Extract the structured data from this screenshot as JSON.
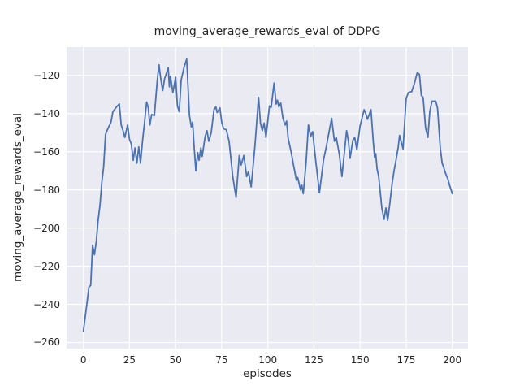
{
  "chart_data": {
    "type": "line",
    "title": "moving_average_rewards_eval of DDPG",
    "xlabel": "episodes",
    "ylabel": "moving_average_rewards_eval",
    "grid": true,
    "legend": false,
    "xlim": [
      -9.1,
      208.5
    ],
    "ylim": [
      -263.2,
      -105.2
    ],
    "xticks": [
      0,
      25,
      50,
      75,
      100,
      125,
      150,
      175,
      200
    ],
    "yticks": [
      -120,
      -140,
      -160,
      -180,
      -200,
      -220,
      -240,
      -260
    ],
    "line_color": "#4c72b0",
    "axes_bg_color": "#eaeaf2",
    "grid_color": "#ffffff",
    "text_color": "#262626",
    "figure_bg_color": "#ffffff",
    "x": [
      0,
      2,
      3,
      4,
      5,
      6,
      7,
      8,
      9,
      10,
      11,
      12,
      13,
      14,
      15,
      16,
      18,
      19.5,
      20.5,
      21.5,
      22.5,
      24,
      25,
      26,
      27,
      28,
      29,
      30,
      31,
      32,
      33,
      34.3,
      35.2,
      36,
      37,
      38.5,
      40,
      41,
      42,
      43,
      44,
      45,
      46,
      46.6,
      47.2,
      48.5,
      50,
      51,
      52,
      53,
      54.5,
      56,
      57.5,
      58.5,
      59.2,
      60,
      61,
      62,
      62.7,
      63.7,
      64.4,
      66,
      67,
      68,
      69.3,
      70.8,
      71.8,
      72.5,
      74,
      75,
      76,
      77.5,
      79,
      81,
      82.8,
      84.5,
      85.5,
      87,
      88.5,
      89.5,
      91,
      93,
      95,
      96,
      97,
      98,
      99,
      100.9,
      101.8,
      103.4,
      104.5,
      105.2,
      106,
      107,
      108.2,
      109.4,
      110.2,
      111,
      112.6,
      114,
      115.5,
      116.2,
      117.7,
      118.4,
      119.2,
      120.7,
      122,
      123.2,
      124.3,
      126,
      128,
      130.2,
      131.7,
      134.6,
      136.1,
      137.1,
      138.7,
      140.2,
      142.7,
      143.7,
      144.6,
      146.1,
      147.1,
      148.3,
      150,
      152.2,
      153.1,
      154,
      155.9,
      157.2,
      157.9,
      158.5,
      159.2,
      160.1,
      161.8,
      163,
      164,
      165,
      166.2,
      167.4,
      168.4,
      169.4,
      170.6,
      171.4,
      173.3,
      175,
      176.2,
      178,
      179.5,
      181,
      182.2,
      183.2,
      184.2,
      185.5,
      186.8,
      187.8,
      189,
      191,
      192,
      193.5,
      194.5,
      195.3,
      196.2,
      197.5,
      198.5,
      200
    ],
    "y": [
      -254,
      -239,
      -231,
      -230,
      -209,
      -214,
      -207,
      -196,
      -188,
      -176,
      -168,
      -151,
      -148.5,
      -146.5,
      -144.5,
      -139,
      -136.5,
      -135,
      -146,
      -149,
      -152.5,
      -146,
      -153.5,
      -156,
      -164.5,
      -158,
      -166,
      -157.5,
      -166,
      -155,
      -146,
      -134,
      -137,
      -146,
      -140.5,
      -141,
      -123,
      -114.5,
      -122,
      -128,
      -122,
      -119,
      -116,
      -126,
      -120.5,
      -129,
      -121,
      -136,
      -139,
      -122.5,
      -116,
      -111.5,
      -141,
      -147,
      -144.5,
      -157,
      -170,
      -160.5,
      -164.5,
      -158,
      -162.5,
      -152,
      -149,
      -154.5,
      -150,
      -138,
      -136.5,
      -139.5,
      -137,
      -144.5,
      -148,
      -148.5,
      -154.5,
      -173,
      -184,
      -162,
      -167,
      -162,
      -173,
      -170.5,
      -178.5,
      -157,
      -131.5,
      -145,
      -149,
      -145,
      -152.5,
      -136,
      -136.7,
      -124,
      -135,
      -133,
      -136.5,
      -134.5,
      -142.5,
      -146,
      -144,
      -153,
      -160,
      -167.5,
      -175,
      -173.5,
      -180,
      -177.5,
      -182,
      -166,
      -146,
      -152,
      -149.5,
      -165,
      -181.5,
      -164.5,
      -157.5,
      -142.5,
      -154.5,
      -152.5,
      -161,
      -173,
      -149,
      -154.5,
      -163.5,
      -154,
      -152.5,
      -159,
      -146.5,
      -138,
      -140,
      -143,
      -138,
      -155,
      -163,
      -161,
      -169,
      -173,
      -189.5,
      -195.5,
      -189.5,
      -196,
      -186.5,
      -176.5,
      -170,
      -165,
      -158,
      -151.5,
      -158.5,
      -132,
      -129,
      -128.5,
      -124,
      -118.5,
      -119.5,
      -130.5,
      -131.5,
      -147.5,
      -152.5,
      -139,
      -133.5,
      -133.5,
      -137,
      -158,
      -166,
      -168,
      -171,
      -174,
      -177.5,
      -182
    ]
  }
}
